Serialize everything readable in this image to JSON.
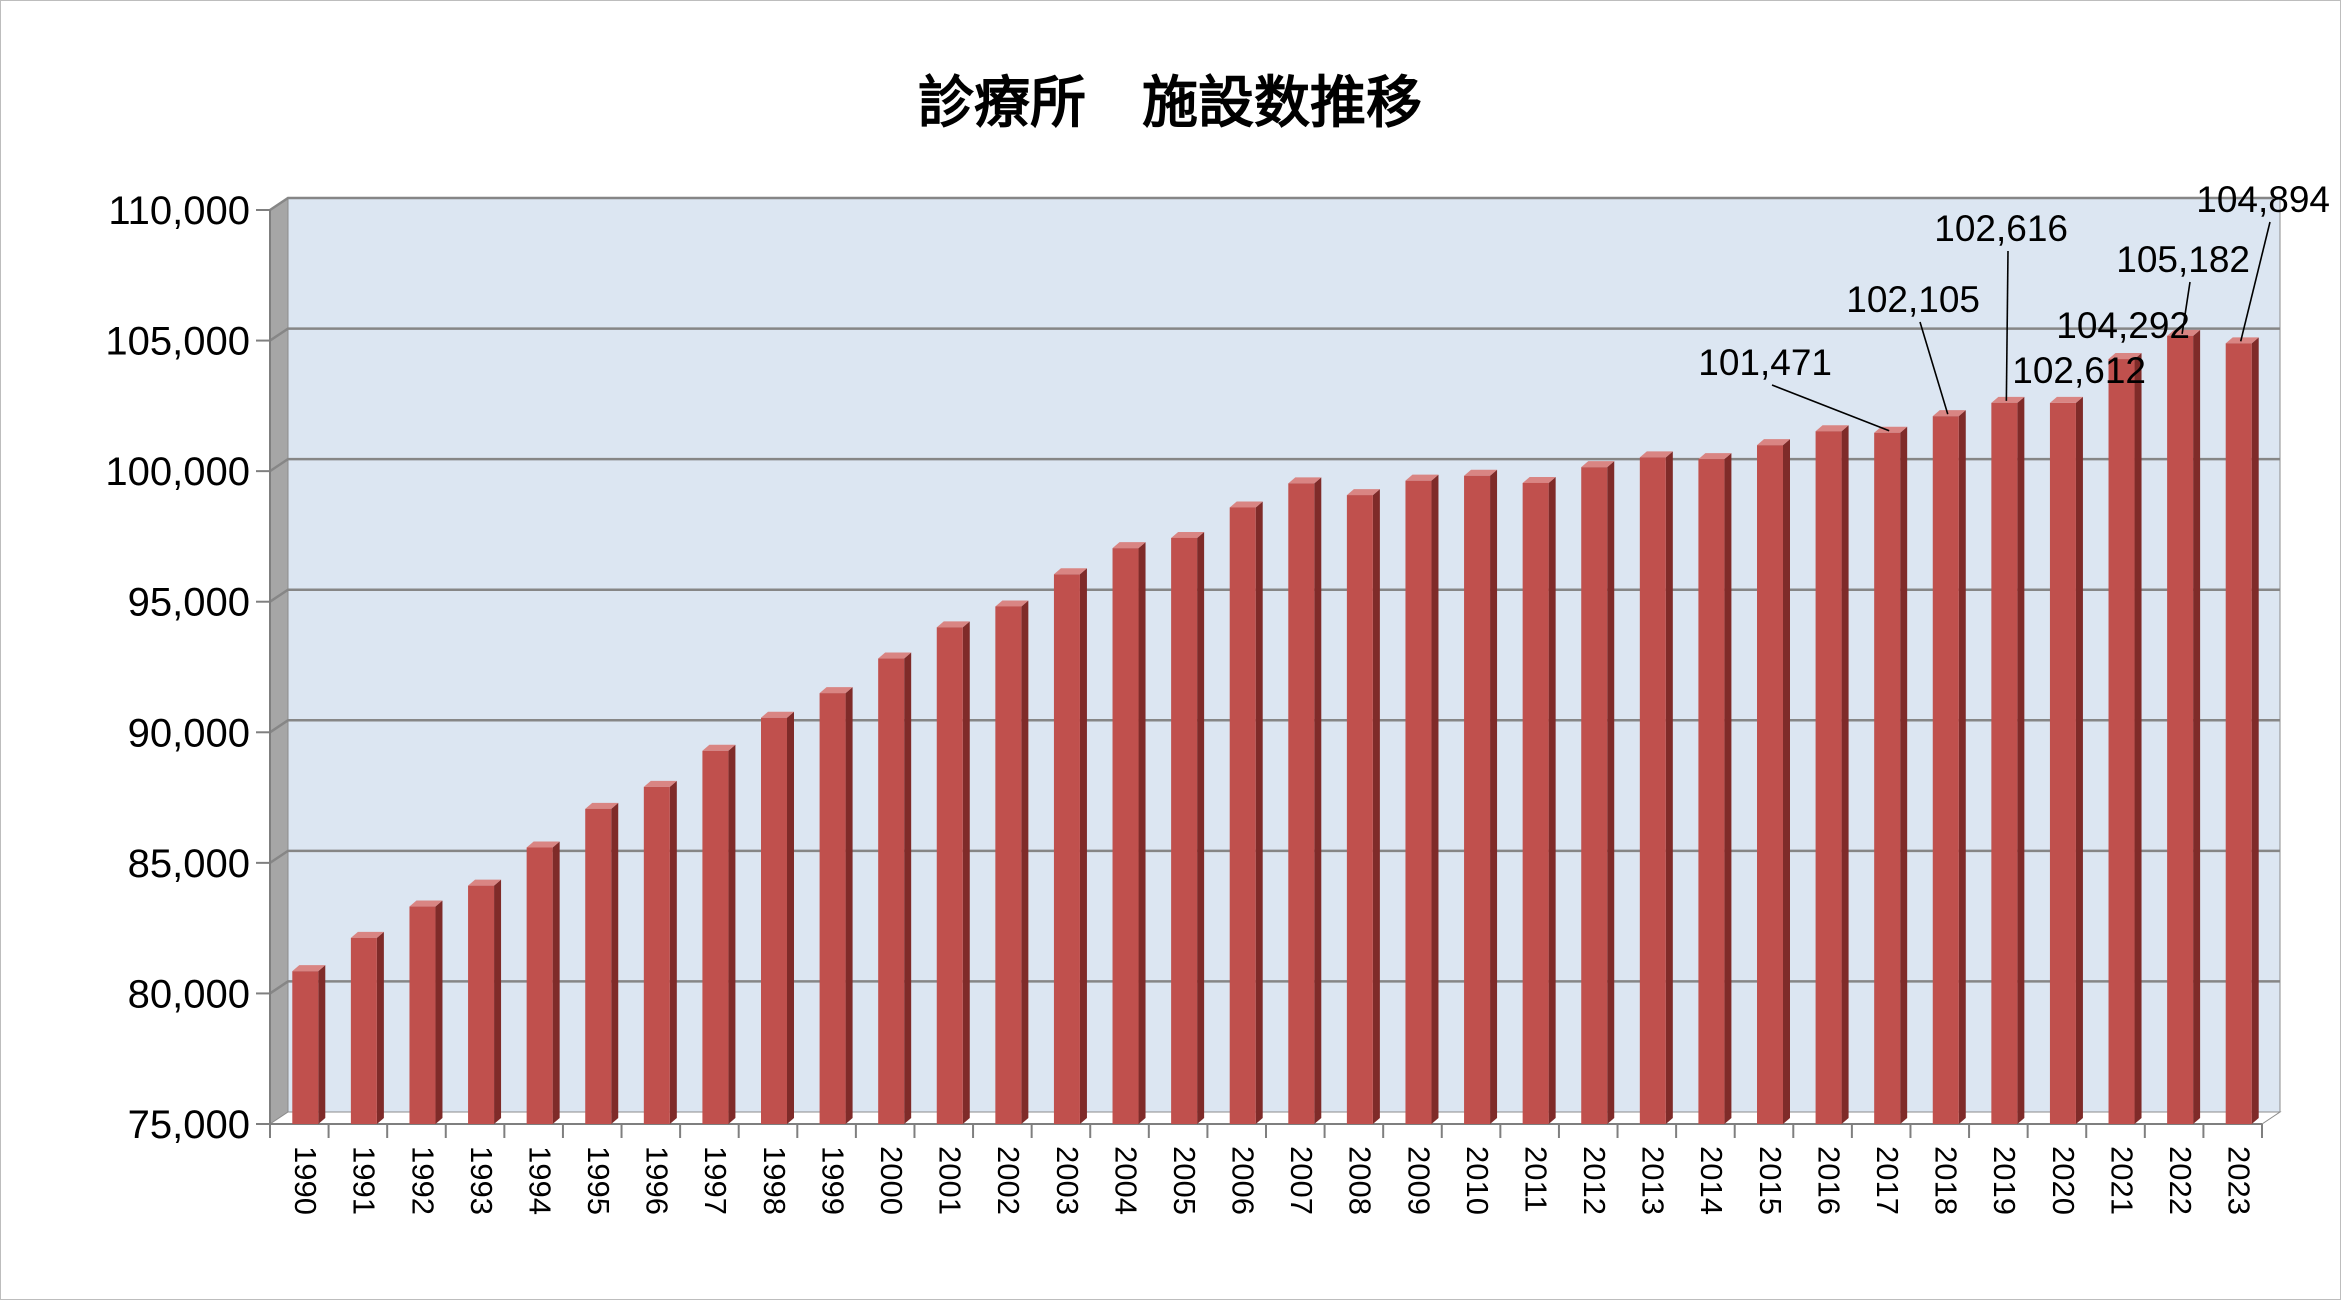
{
  "chart_data": {
    "type": "bar",
    "title": "診療所　施設数推移",
    "xlabel": "",
    "ylabel": "",
    "ylim": [
      75000,
      110000
    ],
    "ytick_step": 5000,
    "ytick_labels": [
      "75,000",
      "80,000",
      "85,000",
      "90,000",
      "95,000",
      "100,000",
      "105,000",
      "110,000"
    ],
    "grid": true,
    "legend": "none",
    "categories": [
      "1990",
      "1991",
      "1992",
      "1993",
      "1994",
      "1995",
      "1996",
      "1997",
      "1998",
      "1999",
      "2000",
      "2001",
      "2002",
      "2003",
      "2004",
      "2005",
      "2006",
      "2007",
      "2008",
      "2009",
      "2010",
      "2011",
      "2012",
      "2013",
      "2014",
      "2015",
      "2016",
      "2017",
      "2018",
      "2019",
      "2020",
      "2021",
      "2022",
      "2023"
    ],
    "values": [
      80852,
      82128,
      83327,
      84128,
      85588,
      87069,
      87909,
      89292,
      90556,
      91500,
      92824,
      94019,
      94819,
      96050,
      97051,
      97442,
      98609,
      99532,
      99083,
      99635,
      99824,
      99547,
      100152,
      100528,
      100461,
      100995,
      101529,
      101471,
      102105,
      102616,
      102612,
      104292,
      105182,
      104894
    ],
    "data_labels": [
      {
        "category": "2017",
        "text": "101,471"
      },
      {
        "category": "2018",
        "text": "102,105"
      },
      {
        "category": "2019",
        "text": "102,616"
      },
      {
        "category": "2020",
        "text": "102,612"
      },
      {
        "category": "2021",
        "text": "104,292"
      },
      {
        "category": "2022",
        "text": "105,182"
      },
      {
        "category": "2023",
        "text": "104,894"
      }
    ],
    "colors": {
      "bar_face": "#c0504d",
      "bar_side": "#7f2b29",
      "bar_top": "#d98583",
      "plot_back": "#dce6f2",
      "left_wall": "#a6a6a6",
      "gridline": "#868686",
      "axis": "#7f7f7f"
    }
  }
}
